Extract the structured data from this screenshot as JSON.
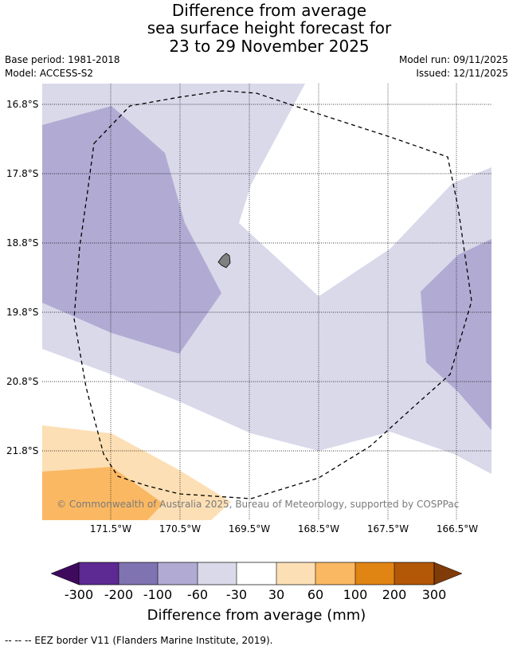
{
  "header": {
    "title_line1": "Difference from average",
    "title_line2": "sea surface height forecast for",
    "title_line3": "23 to 29 November 2025",
    "base_period": "Base period: 1981-2018",
    "model": "Model: ACCESS-S2",
    "model_run": "Model run: 09/11/2025",
    "issued": "Issued: 12/11/2025"
  },
  "map": {
    "lat_labels": [
      "16.8°S",
      "17.8°S",
      "18.8°S",
      "19.8°S",
      "20.8°S",
      "21.8°S"
    ],
    "lon_labels": [
      "171.5°W",
      "170.5°W",
      "169.5°W",
      "168.5°W",
      "167.5°W",
      "166.5°W"
    ],
    "copyright": "© Commonwealth of Australia 2025, Bureau of Meteorology, supported by COSPPac",
    "colors": {
      "minus100_to_minus60": "#b1abd3",
      "minus60_to_minus30": "#d9d9ea",
      "plus30_to_plus60": "#fddfb5",
      "plus60_to_plus100": "#fbb862",
      "island": "#808080"
    }
  },
  "colorbar": {
    "ticks": [
      "-300",
      "-200",
      "-100",
      "-60",
      "-30",
      "30",
      "60",
      "100",
      "200",
      "300"
    ],
    "colors": [
      "#3f0a5e",
      "#5c2a92",
      "#8073b1",
      "#b1abd3",
      "#d9d9ea",
      "#ffffff",
      "#fddfb5",
      "#fbb862",
      "#e08414",
      "#b35806",
      "#7f3b08"
    ],
    "label": "Difference from average (mm)"
  },
  "footer": {
    "legend": "--  --  -- EEZ border V11 (Flanders Marine Institute, 2019)."
  }
}
